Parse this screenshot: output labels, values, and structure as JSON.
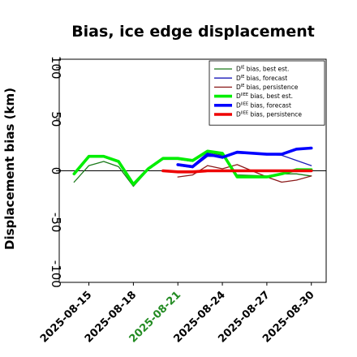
{
  "chart_data": {
    "type": "line",
    "title": "Bias, ice edge displacement",
    "ylabel": "Displacement bias (km)",
    "xlabel": "",
    "ylim": [
      -108,
      108
    ],
    "xlim": [
      "2025-08-13",
      "2025-08-31"
    ],
    "yticks": [
      -100,
      -50,
      0,
      50,
      100
    ],
    "xticks": [
      {
        "label": "2025-08-15",
        "date": "2025-08-15",
        "color": "#000000"
      },
      {
        "label": "2025-08-18",
        "date": "2025-08-18",
        "color": "#000000"
      },
      {
        "label": "2025-08-21",
        "date": "2025-08-21",
        "color": "#228B22"
      },
      {
        "label": "2025-08-24",
        "date": "2025-08-24",
        "color": "#000000"
      },
      {
        "label": "2025-08-27",
        "date": "2025-08-27",
        "color": "#000000"
      },
      {
        "label": "2025-08-30",
        "date": "2025-08-30",
        "color": "#000000"
      }
    ],
    "zero_line": true,
    "grid": false,
    "legend_position": "top-right",
    "series": [
      {
        "name_main": "D",
        "name_sup": "IE",
        "name_rest": " bias, best est.",
        "color": "#1a7a1a",
        "width": 1.3,
        "points": [
          [
            "2025-08-14",
            -11
          ],
          [
            "2025-08-15",
            5
          ],
          [
            "2025-08-16",
            9
          ],
          [
            "2025-08-17",
            4
          ],
          [
            "2025-08-18",
            -15
          ],
          [
            "2025-08-19",
            1
          ],
          [
            "2025-08-20",
            11
          ],
          [
            "2025-08-21",
            11
          ],
          [
            "2025-08-22",
            9
          ],
          [
            "2025-08-23",
            18
          ],
          [
            "2025-08-24",
            15
          ],
          [
            "2025-08-25",
            -4
          ],
          [
            "2025-08-27",
            -5
          ],
          [
            "2025-08-28",
            -3
          ],
          [
            "2025-08-29",
            -3
          ],
          [
            "2025-08-30",
            -5
          ]
        ]
      },
      {
        "name_main": "D",
        "name_sup": "IE",
        "name_rest": " bias, forecast",
        "color": "#1a1ab8",
        "width": 1.3,
        "points": [
          [
            "2025-08-21",
            5
          ],
          [
            "2025-08-22",
            3
          ],
          [
            "2025-08-23",
            14
          ],
          [
            "2025-08-24",
            14
          ],
          [
            "2025-08-25",
            17
          ],
          [
            "2025-08-27",
            16
          ],
          [
            "2025-08-28",
            15
          ],
          [
            "2025-08-29",
            10
          ],
          [
            "2025-08-30",
            5
          ]
        ]
      },
      {
        "name_main": "D",
        "name_sup": "IE",
        "name_rest": " bias, persistence",
        "color": "#8b1a1a",
        "width": 1.3,
        "points": [
          [
            "2025-08-21",
            -6
          ],
          [
            "2025-08-22",
            -4
          ],
          [
            "2025-08-23",
            5
          ],
          [
            "2025-08-24",
            2
          ],
          [
            "2025-08-25",
            6
          ],
          [
            "2025-08-26",
            0
          ],
          [
            "2025-08-27",
            -6
          ],
          [
            "2025-08-28",
            -11
          ],
          [
            "2025-08-29",
            -9
          ],
          [
            "2025-08-30",
            -5
          ]
        ]
      },
      {
        "name_main": "D",
        "name_sup": "IIEE",
        "name_rest": " bias, best est.",
        "color": "#00ee00",
        "width": 3.6,
        "points": [
          [
            "2025-08-14",
            -3
          ],
          [
            "2025-08-15",
            14
          ],
          [
            "2025-08-16",
            14
          ],
          [
            "2025-08-17",
            9
          ],
          [
            "2025-08-18",
            -13
          ],
          [
            "2025-08-19",
            2
          ],
          [
            "2025-08-20",
            12
          ],
          [
            "2025-08-21",
            12
          ],
          [
            "2025-08-22",
            10
          ],
          [
            "2025-08-23",
            19
          ],
          [
            "2025-08-24",
            17
          ],
          [
            "2025-08-25",
            -6
          ],
          [
            "2025-08-27",
            -6
          ],
          [
            "2025-08-28",
            -3
          ],
          [
            "2025-08-29",
            1
          ],
          [
            "2025-08-30",
            1
          ]
        ]
      },
      {
        "name_main": "D",
        "name_sup": "IIEE",
        "name_rest": " bias, forecast",
        "color": "#0000ff",
        "width": 3.6,
        "points": [
          [
            "2025-08-21",
            6
          ],
          [
            "2025-08-22",
            4
          ],
          [
            "2025-08-23",
            16
          ],
          [
            "2025-08-24",
            13
          ],
          [
            "2025-08-25",
            18
          ],
          [
            "2025-08-27",
            16
          ],
          [
            "2025-08-28",
            16
          ],
          [
            "2025-08-29",
            21
          ],
          [
            "2025-08-30",
            22
          ]
        ]
      },
      {
        "name_main": "D",
        "name_sup": "IIEE",
        "name_rest": " bias, persistence",
        "color": "#ee0000",
        "width": 3.6,
        "points": [
          [
            "2025-08-20",
            0
          ],
          [
            "2025-08-21",
            -1
          ],
          [
            "2025-08-22",
            -1
          ],
          [
            "2025-08-23",
            0
          ],
          [
            "2025-08-24",
            0
          ],
          [
            "2025-08-25",
            0
          ],
          [
            "2025-08-27",
            0
          ],
          [
            "2025-08-28",
            0
          ],
          [
            "2025-08-29",
            0
          ],
          [
            "2025-08-30",
            0
          ]
        ]
      }
    ]
  }
}
